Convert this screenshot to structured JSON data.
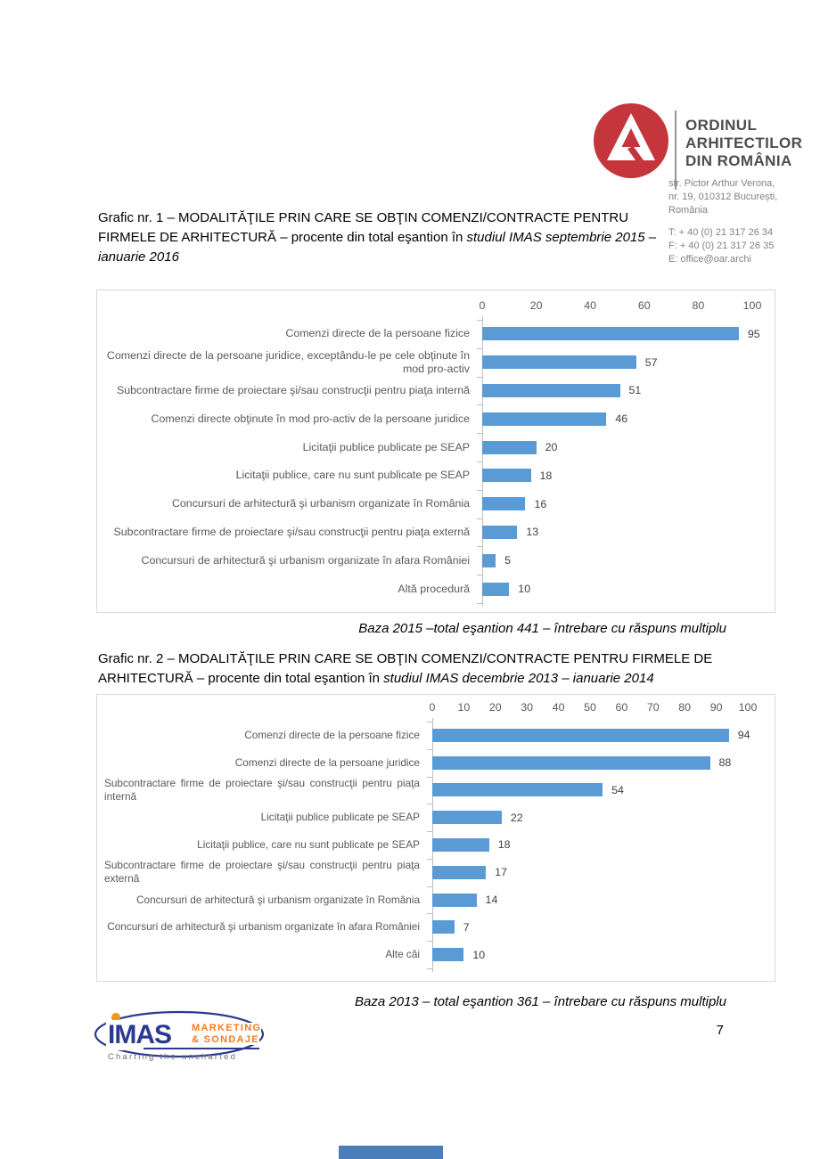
{
  "page": {
    "number": "7"
  },
  "colors": {
    "bar_blue": "#5B9BD5",
    "oar_red": "#C5363C",
    "imas_navy": "#2B3990",
    "imas_orange": "#F47B20",
    "footer_mark_blue": "#4A7EBA"
  },
  "header": {
    "logo_icon": "oar-logo",
    "org_lines": [
      "ORDINUL",
      "ARHITECTILOR",
      "DIN ROMÂNIA"
    ],
    "address_lines": [
      "str. Pictor Arthur Verona,",
      "nr. 19, 010312 București,",
      "România"
    ],
    "contact_lines": [
      "T: + 40 (0) 21 317 26 34",
      "F: + 40 (0) 21 317 26 35",
      "E: office@oar.archi"
    ]
  },
  "sections": [
    {
      "title_regular": "Grafic nr. 1 – MODALITĂŢILE PRIN CARE SE OBŢIN COMENZI/CONTRACTE PENTRU FIRMELE DE ARHITECTURĂ – procente din total eşantion în ",
      "title_italic": "studiul IMAS septembrie 2015 – ianuarie 2016",
      "note": "Baza 2015 –total eşantion 441 – întrebare cu răspuns multiplu"
    },
    {
      "title_regular": "Grafic nr. 2 – MODALITĂŢILE PRIN CARE SE OBŢIN COMENZI/CONTRACTE PENTRU FIRMELE DE ARHITECTURĂ – procente din total eşantion în ",
      "title_italic": "studiul IMAS decembrie 2013 – ianuarie 2014",
      "note": "Baza 2013 – total eşantion 361 – întrebare cu răspuns multiplu"
    }
  ],
  "chart_data": [
    {
      "type": "bar",
      "orientation": "horizontal",
      "title": "Grafic nr. 1 – MODALITĂŢILE PRIN CARE SE OBŢIN COMENZI/CONTRACTE PENTRU FIRMELE DE ARHITECTURĂ – procente din total eşantion în studiul IMAS septembrie 2015 – ianuarie 2016",
      "note": "Baza 2015 –total eşantion 441 – întrebare cu răspuns multiplu",
      "categories": [
        "Comenzi directe de la persoane fizice",
        "Comenzi directe de la persoane juridice, exceptându-le pe cele obţinute în mod pro-activ",
        "Subcontractare firme de proiectare şi/sau construcţii pentru piaţa internă",
        "Comenzi directe obţinute în mod pro-activ de la persoane juridice",
        "Licitaţii publice publicate pe SEAP",
        "Licitaţii publice, care nu sunt publicate pe SEAP",
        "Concursuri de arhitectură şi urbanism organizate în România",
        "Subcontractare firme de proiectare şi/sau construcţii pentru piaţa externă",
        "Concursuri de arhitectură şi urbanism organizate în afara României",
        "Altă procedură"
      ],
      "values": [
        95,
        57,
        51,
        46,
        20,
        18,
        16,
        13,
        5,
        10
      ],
      "xlim": [
        0,
        100
      ],
      "xticks": [
        0,
        20,
        40,
        60,
        80,
        100
      ],
      "xlabel": "",
      "ylabel": "",
      "grid": false,
      "legend": false,
      "bar_color": "#5B9BD5"
    },
    {
      "type": "bar",
      "orientation": "horizontal",
      "title": "Grafic nr. 2 – MODALITĂŢILE PRIN CARE SE OBŢIN COMENZI/CONTRACTE PENTRU FIRMELE DE ARHITECTURĂ – procente din total eşantion în studiul IMAS decembrie 2013 – ianuarie 2014",
      "note": "Baza 2013 – total eşantion 361 – întrebare cu răspuns multiplu",
      "categories": [
        "Comenzi directe de la persoane fizice",
        "Comenzi directe de la persoane juridice",
        "Subcontractare firme de proiectare şi/sau construcţii pentru piaţa internă",
        "Licitaţii publice publicate pe SEAP",
        "Licitaţii publice, care nu sunt publicate pe SEAP",
        "Subcontractare firme de proiectare şi/sau construcţii pentru piaţa externă",
        "Concursuri de arhitectură şi urbanism organizate în România",
        "Concursuri de arhitectură şi urbanism organizate în afara României",
        "Alte căi"
      ],
      "values": [
        94,
        88,
        54,
        22,
        18,
        17,
        14,
        7,
        10
      ],
      "xlim": [
        0,
        100
      ],
      "xticks": [
        0,
        10,
        20,
        30,
        40,
        50,
        60,
        70,
        80,
        90,
        100
      ],
      "xlabel": "",
      "ylabel": "",
      "grid": false,
      "legend": false,
      "bar_color": "#5B9BD5"
    }
  ],
  "footer": {
    "imas_logo": {
      "name": "IMAS",
      "sub1": "MARKETING",
      "sub2": "& SONDAJE",
      "tagline": "Charting the uncharted"
    }
  }
}
